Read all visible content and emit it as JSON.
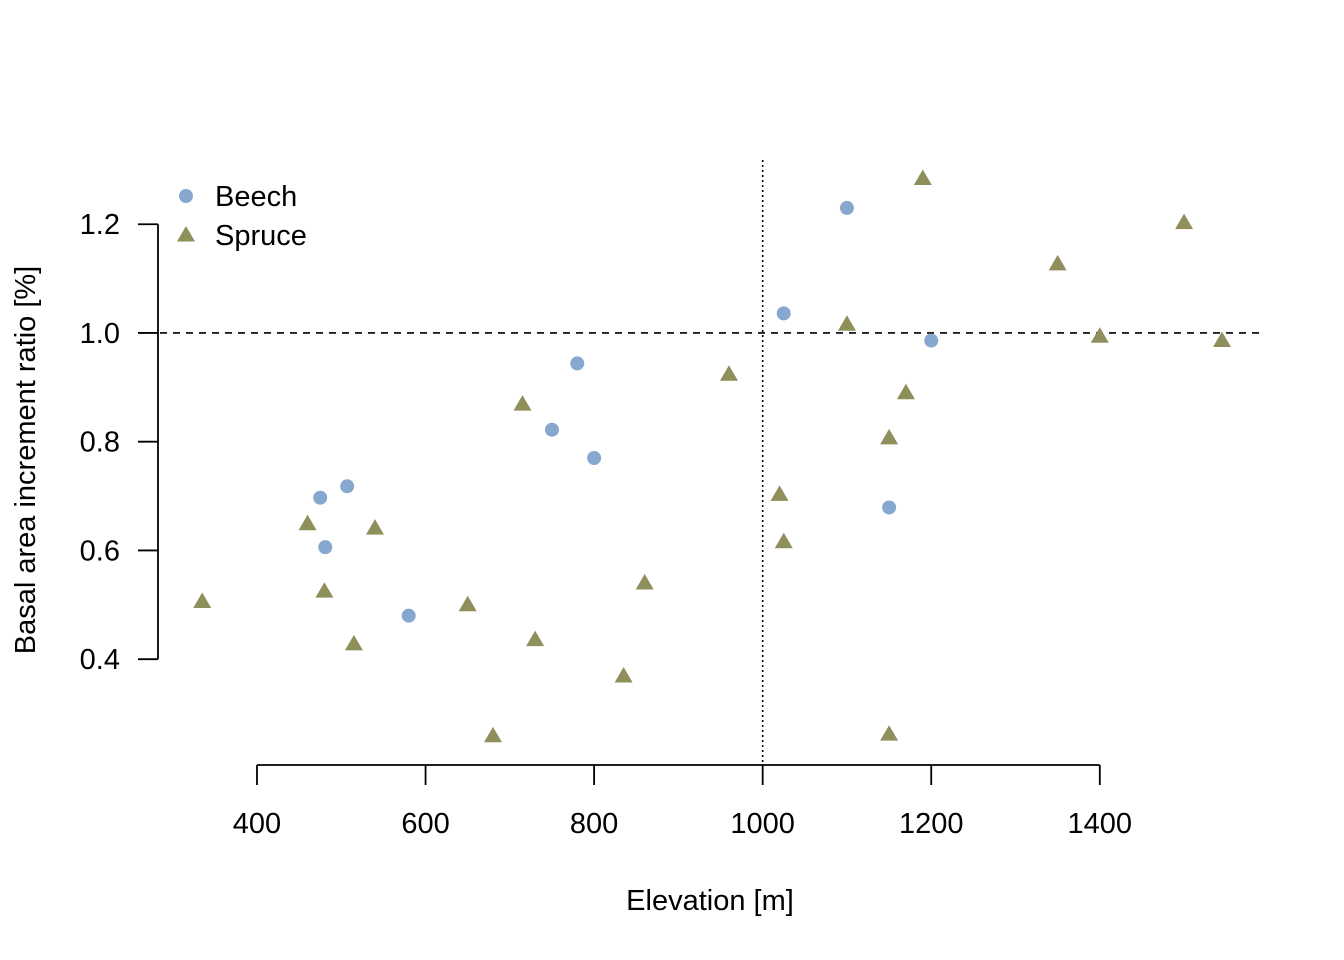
{
  "chart_data": {
    "type": "scatter",
    "title": "",
    "xlabel": "Elevation [m]",
    "ylabel": "Basal area increment ratio [%]",
    "xlim": [
      330,
      1545
    ],
    "ylim": [
      0.255,
      1.285
    ],
    "x_ticks": [
      400,
      600,
      800,
      1000,
      1200,
      1400
    ],
    "x_tick_labels": [
      "400",
      "600",
      "800",
      "1000",
      "1200",
      "1400"
    ],
    "y_ticks": [
      0.4,
      0.6,
      0.8,
      1.0,
      1.2
    ],
    "y_tick_labels": [
      "0.4",
      "0.6",
      "0.8",
      "1.0",
      "1.2"
    ],
    "reference_lines": [
      {
        "orientation": "horizontal",
        "value": 1.0,
        "style": "dashed"
      },
      {
        "orientation": "vertical",
        "value": 1000,
        "style": "dotted"
      }
    ],
    "grid": false,
    "legend_position": "top-left",
    "series": [
      {
        "name": "Beech",
        "marker": "circle",
        "color": "#86A8CF",
        "points": [
          [
            475,
            0.697
          ],
          [
            481,
            0.606
          ],
          [
            507,
            0.718
          ],
          [
            580,
            0.48
          ],
          [
            750,
            0.822
          ],
          [
            780,
            0.944
          ],
          [
            800,
            0.77
          ],
          [
            1025,
            1.036
          ],
          [
            1100,
            1.23
          ],
          [
            1150,
            0.679
          ],
          [
            1200,
            0.986
          ]
        ]
      },
      {
        "name": "Spruce",
        "marker": "triangle",
        "color": "#8F8F5C",
        "points": [
          [
            335,
            0.506
          ],
          [
            460,
            0.649
          ],
          [
            480,
            0.525
          ],
          [
            515,
            0.428
          ],
          [
            540,
            0.641
          ],
          [
            650,
            0.5
          ],
          [
            680,
            0.259
          ],
          [
            715,
            0.869
          ],
          [
            730,
            0.436
          ],
          [
            835,
            0.369
          ],
          [
            860,
            0.54
          ],
          [
            960,
            0.924
          ],
          [
            1020,
            0.703
          ],
          [
            1025,
            0.616
          ],
          [
            1100,
            1.016
          ],
          [
            1150,
            0.807
          ],
          [
            1150,
            0.262
          ],
          [
            1170,
            0.89
          ],
          [
            1190,
            1.284
          ],
          [
            1350,
            1.127
          ],
          [
            1400,
            0.994
          ],
          [
            1500,
            1.203
          ],
          [
            1545,
            0.986
          ]
        ]
      }
    ]
  }
}
